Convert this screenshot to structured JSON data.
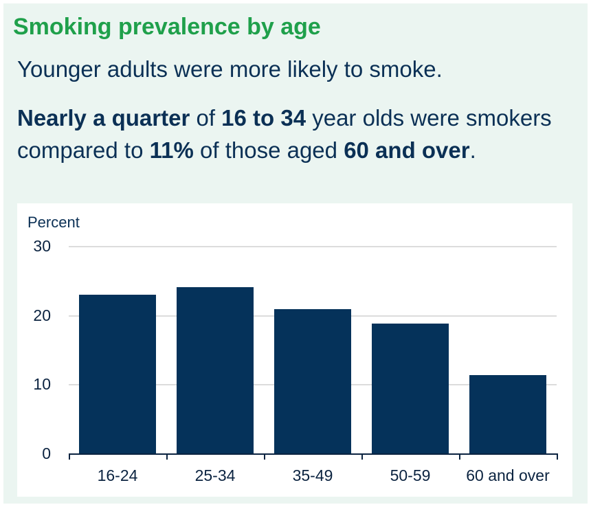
{
  "header": {
    "title": "Smoking prevalence by age",
    "subtitle": "Younger adults were more likely to smoke.",
    "description": {
      "b1": "Nearly a quarter",
      "t1": " of ",
      "b2": "16 to 34",
      "t2": " year olds were smokers compared to ",
      "b3": "11%",
      "t3": " of those aged ",
      "b4": "60 and over",
      "t4": "."
    }
  },
  "colors": {
    "title": "#1fa04b",
    "text": "#0b3055",
    "bar": "#05325a",
    "panel_background": "#ebf5f1",
    "gridline": "#dcdcdc"
  },
  "chart_data": {
    "type": "bar",
    "title": "Smoking prevalence by age",
    "xlabel": "",
    "ylabel": "Percent",
    "categories": [
      "16-24",
      "25-34",
      "35-49",
      "50-59",
      "60 and over"
    ],
    "values": [
      23.0,
      24.1,
      21.0,
      18.9,
      11.4
    ],
    "ylim": [
      0,
      30
    ],
    "yticks": [
      "0",
      "10",
      "20",
      "30"
    ],
    "grid": true,
    "legend": null
  }
}
